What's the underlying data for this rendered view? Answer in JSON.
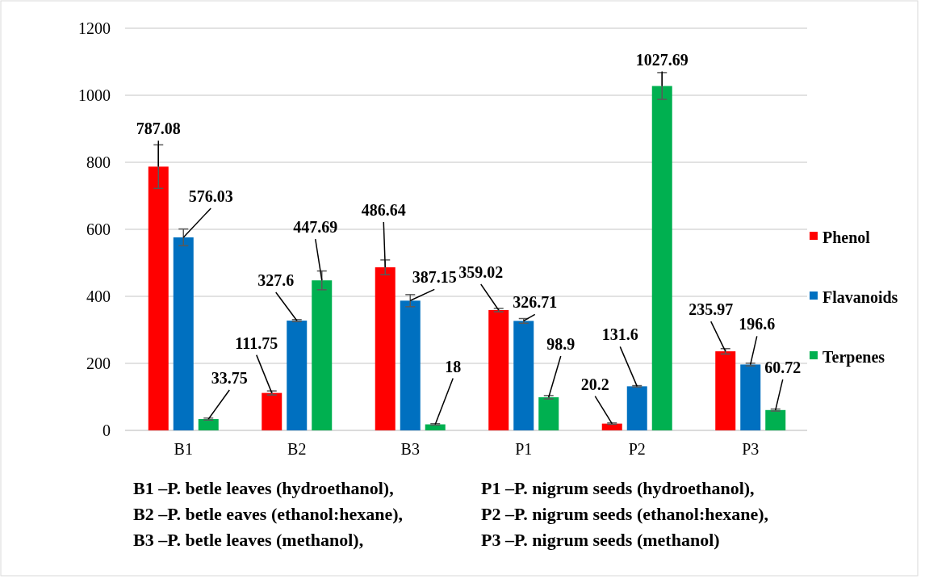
{
  "chart_data": {
    "type": "bar",
    "categories": [
      "B1",
      "B2",
      "B3",
      "P1",
      "P2",
      "P3"
    ],
    "series": [
      {
        "name": "Phenol",
        "color": "#ff0000",
        "values": [
          787.08,
          111.75,
          486.64,
          359.02,
          20.2,
          235.97
        ],
        "errors": [
          65,
          6,
          22,
          5,
          2,
          8
        ]
      },
      {
        "name": "Flavanoids",
        "color": "#0070c0",
        "values": [
          576.03,
          327.6,
          387.15,
          326.71,
          131.6,
          196.6
        ],
        "errors": [
          25,
          3,
          18,
          7,
          2,
          4
        ]
      },
      {
        "name": "Terpenes",
        "color": "#00b050",
        "values": [
          33.75,
          447.69,
          18,
          98.9,
          1027.69,
          60.72
        ],
        "errors": [
          3,
          28,
          2,
          5,
          40,
          3
        ]
      }
    ],
    "ylim": [
      0,
      1200
    ],
    "yticks": [
      0,
      200,
      400,
      600,
      800,
      1000,
      1200
    ],
    "grid": "y",
    "legend": "right",
    "data_labels": true,
    "annotations": [
      "B1 –P. betle leaves (hydroethanol),",
      "P1 –P. nigrum seeds (hydroethanol),",
      "B2 –P. betle eaves (ethanol:hexane),",
      "P2 –P. nigrum seeds (ethanol:hexane),",
      "B3 –P. betle leaves (methanol),",
      "P3 –P. nigrum seeds (methanol)"
    ]
  }
}
